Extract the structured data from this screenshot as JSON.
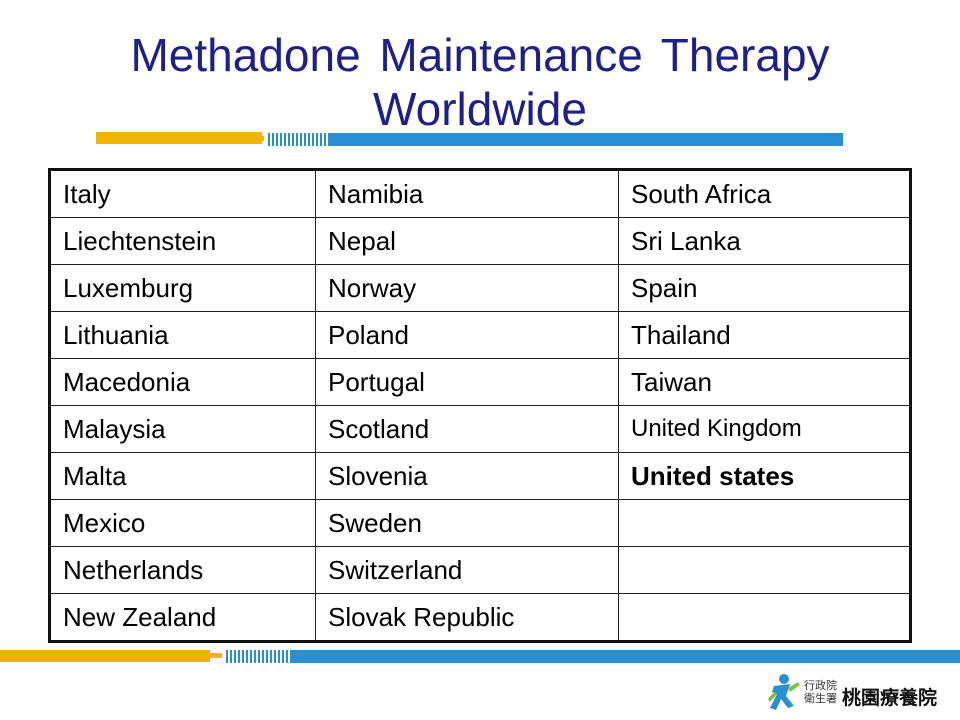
{
  "slide": {
    "title": "Methadone Maintenance Therapy Worldwide"
  },
  "table": {
    "rows": [
      [
        "Italy",
        "Namibia",
        "South Africa"
      ],
      [
        "Liechtenstein",
        "Nepal",
        "Sri Lanka"
      ],
      [
        "Luxemburg",
        "Norway",
        "Spain"
      ],
      [
        "Lithuania",
        "Poland",
        "Thailand"
      ],
      [
        "Macedonia",
        "Portugal",
        "Taiwan"
      ],
      [
        "Malaysia",
        "Scotland",
        "United Kingdom"
      ],
      [
        "Malta",
        "Slovenia",
        "United states"
      ],
      [
        "Mexico",
        "Sweden",
        ""
      ],
      [
        "Netherlands",
        "Switzerland",
        ""
      ],
      [
        "New Zealand",
        "Slovak Republic",
        ""
      ]
    ]
  },
  "logo": {
    "org_small_line1": "行政院",
    "org_small_line2": "衛生署",
    "org_name": "桃園療養院",
    "icon": "running-figure-icon"
  },
  "colors": {
    "title": "#1f1f8c",
    "accent_yellow": "#f2b400",
    "accent_blue": "#2a8fd0"
  }
}
